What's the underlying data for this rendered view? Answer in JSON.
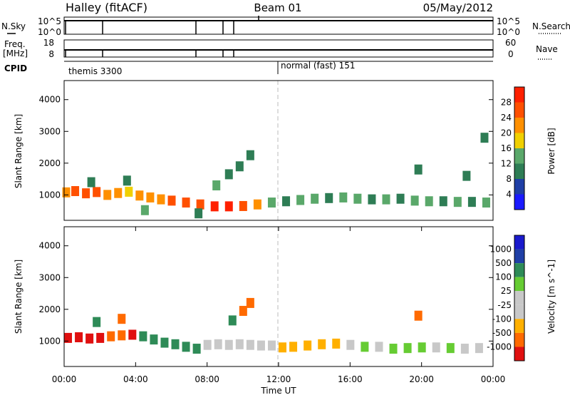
{
  "header": {
    "left": "Halley (fitACF)",
    "center": "Beam 01",
    "right": "05/May/2012"
  },
  "strip_labels": {
    "nsky": "N.Sky",
    "freq_line1": "Freq.",
    "freq_line2": "[MHz]",
    "cpid": "CPID",
    "nsearch": "N.Search",
    "nave": "Nave",
    "nsky_ticks": [
      "10^5",
      "10^0"
    ],
    "nsearch_ticks": [
      "10^5",
      "10^0"
    ],
    "freq_ticks": [
      "18",
      "8"
    ],
    "nave_ticks": [
      "60",
      "0"
    ],
    "cpid_left": "themis 3300",
    "cpid_right": "normal (fast) 151"
  },
  "colors": {
    "power": [
      "#1a1aff",
      "#1f3fa6",
      "#2e7d55",
      "#5aa86a",
      "#f0d000",
      "#ff9000",
      "#ff5000",
      "#ff2000"
    ],
    "velocity": [
      "#e01010",
      "#ff6a00",
      "#ffb000",
      "#c8c8c8",
      "#c8c8c8",
      "#66cc33",
      "#2e8b57",
      "#1f3fa6",
      "#1a1acc"
    ]
  },
  "chart_data": [
    {
      "type": "heatmap",
      "quantity": "power",
      "xlabel": "",
      "ylabel": "Slant Range [km]",
      "ylim": [
        200,
        4600
      ],
      "y_ticks": [
        "1000",
        "2000",
        "3000",
        "4000"
      ],
      "colorbar_label": "Power [dB]",
      "colorbar_ticks": [
        "4",
        "8",
        "12",
        "16",
        "20",
        "24",
        "28"
      ],
      "colorbar_range": [
        0,
        32
      ],
      "grid": false,
      "features": [
        {
          "x": 0.1,
          "y": 1080,
          "power": 22
        },
        {
          "x": 0.6,
          "y": 1120,
          "power": 25
        },
        {
          "x": 1.2,
          "y": 1050,
          "power": 24
        },
        {
          "x": 1.8,
          "y": 1090,
          "power": 26
        },
        {
          "x": 2.4,
          "y": 1000,
          "power": 20
        },
        {
          "x": 3.0,
          "y": 1060,
          "power": 22
        },
        {
          "x": 3.6,
          "y": 1100,
          "power": 18
        },
        {
          "x": 4.2,
          "y": 980,
          "power": 22
        },
        {
          "x": 4.8,
          "y": 920,
          "power": 20
        },
        {
          "x": 5.4,
          "y": 860,
          "power": 22
        },
        {
          "x": 6.0,
          "y": 820,
          "power": 24
        },
        {
          "x": 6.8,
          "y": 760,
          "power": 26
        },
        {
          "x": 7.6,
          "y": 700,
          "power": 26
        },
        {
          "x": 8.4,
          "y": 640,
          "power": 28
        },
        {
          "x": 9.2,
          "y": 640,
          "power": 28
        },
        {
          "x": 10.0,
          "y": 650,
          "power": 26
        },
        {
          "x": 10.8,
          "y": 700,
          "power": 20
        },
        {
          "x": 11.6,
          "y": 760,
          "power": 12
        },
        {
          "x": 12.4,
          "y": 800,
          "power": 10
        },
        {
          "x": 13.2,
          "y": 840,
          "power": 12
        },
        {
          "x": 14.0,
          "y": 880,
          "power": 12
        },
        {
          "x": 14.8,
          "y": 900,
          "power": 10
        },
        {
          "x": 15.6,
          "y": 920,
          "power": 12
        },
        {
          "x": 16.4,
          "y": 880,
          "power": 12
        },
        {
          "x": 17.2,
          "y": 860,
          "power": 10
        },
        {
          "x": 18.0,
          "y": 860,
          "power": 12
        },
        {
          "x": 18.8,
          "y": 880,
          "power": 10
        },
        {
          "x": 19.6,
          "y": 820,
          "power": 14
        },
        {
          "x": 20.4,
          "y": 800,
          "power": 12
        },
        {
          "x": 21.2,
          "y": 800,
          "power": 10
        },
        {
          "x": 22.0,
          "y": 780,
          "power": 12
        },
        {
          "x": 22.8,
          "y": 780,
          "power": 10
        },
        {
          "x": 23.6,
          "y": 760,
          "power": 12
        },
        {
          "x": 1.5,
          "y": 1400,
          "power": 10
        },
        {
          "x": 3.5,
          "y": 1450,
          "power": 10
        },
        {
          "x": 8.5,
          "y": 1300,
          "power": 14
        },
        {
          "x": 9.2,
          "y": 1650,
          "power": 10
        },
        {
          "x": 9.8,
          "y": 1900,
          "power": 10
        },
        {
          "x": 10.4,
          "y": 2250,
          "power": 10
        },
        {
          "x": 4.5,
          "y": 520,
          "power": 12
        },
        {
          "x": 7.5,
          "y": 420,
          "power": 10
        },
        {
          "x": 19.8,
          "y": 1800,
          "power": 10
        },
        {
          "x": 22.5,
          "y": 1600,
          "power": 8
        },
        {
          "x": 23.5,
          "y": 2800,
          "power": 8
        }
      ]
    },
    {
      "type": "heatmap",
      "quantity": "velocity",
      "xlabel": "Time UT",
      "ylabel": "Slant Range [km]",
      "ylim": [
        200,
        4600
      ],
      "y_ticks": [
        "1000",
        "2000",
        "3000",
        "4000"
      ],
      "x_ticks": [
        "00:00",
        "04:00",
        "08:00",
        "12:00",
        "16:00",
        "20:00",
        "00:00"
      ],
      "xlim": [
        0,
        24
      ],
      "colorbar_label": "Velocity [m s^-1]",
      "colorbar_ticks": [
        "1000",
        "500",
        "100",
        "25",
        "-25",
        "-100",
        "-500",
        "-1000"
      ],
      "grid": false,
      "features": [
        {
          "x": 0.2,
          "y": 1100,
          "v": -700
        },
        {
          "x": 0.8,
          "y": 1120,
          "v": -800
        },
        {
          "x": 1.4,
          "y": 1080,
          "v": -600
        },
        {
          "x": 2.0,
          "y": 1100,
          "v": -700
        },
        {
          "x": 2.6,
          "y": 1150,
          "v": -400
        },
        {
          "x": 3.2,
          "y": 1180,
          "v": -300
        },
        {
          "x": 3.8,
          "y": 1200,
          "v": -500
        },
        {
          "x": 4.4,
          "y": 1150,
          "v": 200
        },
        {
          "x": 5.0,
          "y": 1050,
          "v": 300
        },
        {
          "x": 5.6,
          "y": 950,
          "v": 400
        },
        {
          "x": 6.2,
          "y": 900,
          "v": 350
        },
        {
          "x": 6.8,
          "y": 820,
          "v": 300
        },
        {
          "x": 7.4,
          "y": 760,
          "v": 200
        },
        {
          "x": 8.0,
          "y": 880,
          "v": 0
        },
        {
          "x": 8.6,
          "y": 900,
          "v": 10
        },
        {
          "x": 9.2,
          "y": 880,
          "v": 0
        },
        {
          "x": 9.8,
          "y": 900,
          "v": 0
        },
        {
          "x": 10.4,
          "y": 880,
          "v": 0
        },
        {
          "x": 11.0,
          "y": 860,
          "v": 5
        },
        {
          "x": 11.6,
          "y": 860,
          "v": 0
        },
        {
          "x": 12.2,
          "y": 800,
          "v": -60
        },
        {
          "x": 12.8,
          "y": 820,
          "v": -70
        },
        {
          "x": 13.6,
          "y": 860,
          "v": -60
        },
        {
          "x": 14.4,
          "y": 900,
          "v": -80
        },
        {
          "x": 15.2,
          "y": 920,
          "v": -60
        },
        {
          "x": 16.0,
          "y": 880,
          "v": 0
        },
        {
          "x": 16.8,
          "y": 820,
          "v": 80
        },
        {
          "x": 17.6,
          "y": 820,
          "v": 0
        },
        {
          "x": 18.4,
          "y": 760,
          "v": 60
        },
        {
          "x": 19.2,
          "y": 780,
          "v": 80
        },
        {
          "x": 20.0,
          "y": 800,
          "v": 70
        },
        {
          "x": 20.8,
          "y": 800,
          "v": 0
        },
        {
          "x": 21.6,
          "y": 780,
          "v": 60
        },
        {
          "x": 22.4,
          "y": 760,
          "v": 0
        },
        {
          "x": 23.2,
          "y": 780,
          "v": 0
        },
        {
          "x": 9.4,
          "y": 1650,
          "v": 200
        },
        {
          "x": 10.0,
          "y": 1950,
          "v": -300
        },
        {
          "x": 10.4,
          "y": 2200,
          "v": -400
        },
        {
          "x": 19.8,
          "y": 1800,
          "v": -300
        },
        {
          "x": 1.8,
          "y": 1600,
          "v": 300
        },
        {
          "x": 3.2,
          "y": 1700,
          "v": -200
        }
      ]
    }
  ]
}
